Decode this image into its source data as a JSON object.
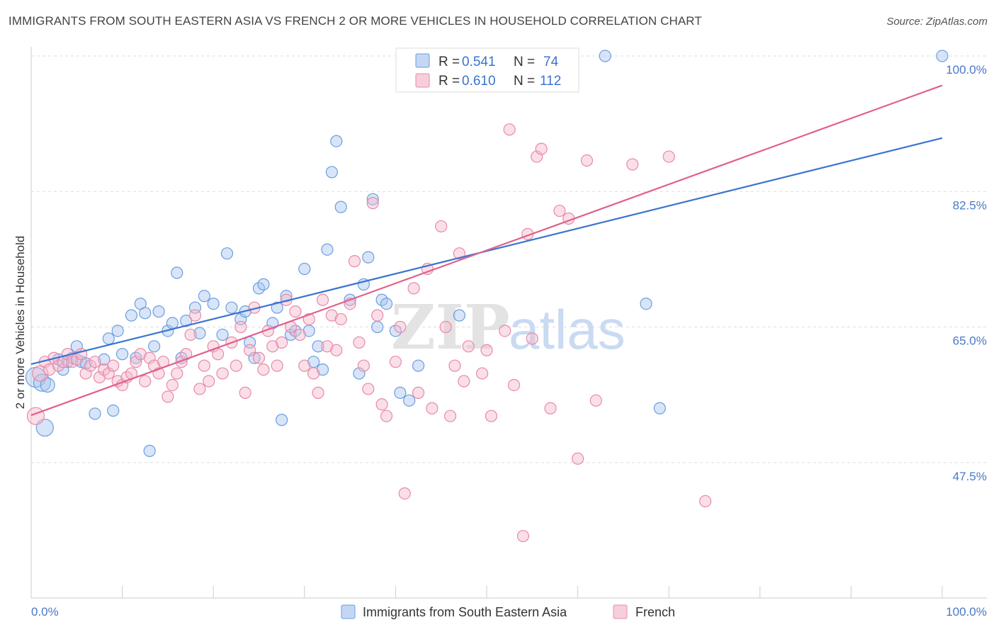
{
  "title": "IMMIGRANTS FROM SOUTH EASTERN ASIA VS FRENCH 2 OR MORE VEHICLES IN HOUSEHOLD CORRELATION CHART",
  "source": "Source: ZipAtlas.com",
  "watermark": {
    "zip": "ZIP",
    "atlas": "atlas"
  },
  "chart_data": {
    "type": "scatter",
    "ylabel": "2 or more Vehicles in Household",
    "xlim": [
      0,
      100
    ],
    "ylim": [
      30,
      100
    ],
    "x_tick_labels": [
      "0.0%",
      "100.0%"
    ],
    "y_ticks": [
      {
        "value": 100,
        "label": "100.0%"
      },
      {
        "value": 82.5,
        "label": "82.5%"
      },
      {
        "value": 65,
        "label": "65.0%"
      },
      {
        "value": 47.5,
        "label": "47.5%"
      }
    ],
    "grid": true,
    "legend_position": "top-center",
    "series": [
      {
        "name": "Immigrants from South Eastern Asia",
        "color": "#6c9ee0",
        "fill": "#a9c6ef",
        "line_color": "#3a74d0",
        "r": "0.541",
        "n": "74",
        "trend": [
          [
            0,
            60.2
          ],
          [
            100,
            89.4
          ]
        ],
        "points": [
          [
            0.5,
            58.5
          ],
          [
            1.2,
            57.8
          ],
          [
            1.5,
            52.0
          ],
          [
            1.8,
            57.5
          ],
          [
            3.0,
            60.8
          ],
          [
            3.5,
            59.5
          ],
          [
            4.0,
            60.5
          ],
          [
            4.5,
            61.0
          ],
          [
            5.0,
            62.5
          ],
          [
            5.5,
            60.5
          ],
          [
            6.0,
            60.3
          ],
          [
            7.0,
            53.8
          ],
          [
            8.0,
            60.8
          ],
          [
            8.5,
            63.5
          ],
          [
            9.0,
            54.2
          ],
          [
            9.5,
            64.5
          ],
          [
            10.0,
            61.5
          ],
          [
            11.0,
            66.5
          ],
          [
            11.5,
            61.0
          ],
          [
            12.0,
            68.0
          ],
          [
            12.5,
            66.8
          ],
          [
            13.0,
            49.0
          ],
          [
            13.5,
            62.5
          ],
          [
            14.0,
            67.0
          ],
          [
            15.0,
            64.5
          ],
          [
            15.5,
            65.5
          ],
          [
            16.0,
            72.0
          ],
          [
            16.5,
            61.0
          ],
          [
            17.0,
            65.8
          ],
          [
            18.0,
            67.5
          ],
          [
            18.5,
            64.2
          ],
          [
            19.0,
            69.0
          ],
          [
            20.0,
            68.0
          ],
          [
            21.0,
            64.0
          ],
          [
            21.5,
            74.5
          ],
          [
            22.0,
            67.5
          ],
          [
            23.0,
            66.0
          ],
          [
            23.5,
            67.0
          ],
          [
            24.0,
            63.0
          ],
          [
            24.5,
            61.0
          ],
          [
            25.0,
            70.0
          ],
          [
            25.5,
            70.5
          ],
          [
            26.5,
            65.5
          ],
          [
            27.0,
            67.5
          ],
          [
            27.5,
            53.0
          ],
          [
            28.0,
            69.0
          ],
          [
            28.5,
            64.0
          ],
          [
            29.0,
            64.5
          ],
          [
            30.0,
            72.5
          ],
          [
            30.5,
            64.5
          ],
          [
            31.0,
            60.5
          ],
          [
            31.5,
            62.5
          ],
          [
            32.0,
            59.5
          ],
          [
            32.5,
            75.0
          ],
          [
            33.0,
            85.0
          ],
          [
            33.5,
            89.0
          ],
          [
            34.0,
            80.5
          ],
          [
            35.0,
            68.5
          ],
          [
            36.0,
            59.0
          ],
          [
            36.5,
            70.5
          ],
          [
            37.0,
            74.0
          ],
          [
            37.5,
            81.5
          ],
          [
            38.0,
            65.0
          ],
          [
            38.5,
            68.5
          ],
          [
            39.0,
            68.0
          ],
          [
            40.0,
            64.5
          ],
          [
            40.5,
            56.5
          ],
          [
            41.5,
            55.5
          ],
          [
            42.5,
            60.0
          ],
          [
            47.0,
            66.5
          ],
          [
            63.0,
            100.0
          ],
          [
            67.5,
            68.0
          ],
          [
            69.0,
            54.5
          ],
          [
            100.0,
            100.0
          ]
        ]
      },
      {
        "name": "French",
        "color": "#e88aa8",
        "fill": "#f4b9cc",
        "line_color": "#e0608c",
        "r": "0.610",
        "n": "112",
        "trend": [
          [
            0,
            53.6
          ],
          [
            100,
            96.2
          ]
        ],
        "points": [
          [
            0.5,
            53.5
          ],
          [
            1.0,
            59.0
          ],
          [
            1.5,
            60.5
          ],
          [
            2.0,
            59.5
          ],
          [
            2.5,
            61.0
          ],
          [
            3.0,
            60.0
          ],
          [
            3.5,
            60.5
          ],
          [
            4.0,
            61.5
          ],
          [
            4.5,
            60.5
          ],
          [
            5.0,
            60.8
          ],
          [
            5.5,
            61.5
          ],
          [
            6.0,
            59.0
          ],
          [
            6.5,
            60.0
          ],
          [
            7.0,
            60.5
          ],
          [
            7.5,
            58.5
          ],
          [
            8.0,
            59.5
          ],
          [
            8.5,
            59.0
          ],
          [
            9.0,
            60.0
          ],
          [
            9.5,
            58.0
          ],
          [
            10.0,
            57.5
          ],
          [
            10.5,
            58.5
          ],
          [
            11.0,
            59.0
          ],
          [
            11.5,
            60.5
          ],
          [
            12.0,
            61.5
          ],
          [
            12.5,
            58.0
          ],
          [
            13.0,
            61.0
          ],
          [
            13.5,
            60.0
          ],
          [
            14.0,
            59.0
          ],
          [
            14.5,
            60.5
          ],
          [
            15.0,
            56.0
          ],
          [
            15.5,
            57.5
          ],
          [
            16.0,
            59.0
          ],
          [
            16.5,
            60.5
          ],
          [
            17.0,
            61.5
          ],
          [
            17.5,
            64.0
          ],
          [
            18.0,
            66.5
          ],
          [
            18.5,
            57.0
          ],
          [
            19.0,
            60.0
          ],
          [
            19.5,
            58.0
          ],
          [
            20.0,
            62.5
          ],
          [
            20.5,
            61.5
          ],
          [
            21.0,
            59.0
          ],
          [
            22.0,
            63.0
          ],
          [
            22.5,
            60.0
          ],
          [
            23.0,
            65.0
          ],
          [
            23.5,
            56.5
          ],
          [
            24.0,
            62.0
          ],
          [
            24.5,
            67.5
          ],
          [
            25.0,
            61.0
          ],
          [
            25.5,
            59.5
          ],
          [
            26.0,
            64.5
          ],
          [
            26.5,
            62.5
          ],
          [
            27.0,
            60.0
          ],
          [
            27.5,
            63.0
          ],
          [
            28.0,
            68.5
          ],
          [
            28.5,
            65.0
          ],
          [
            29.0,
            67.0
          ],
          [
            29.5,
            64.0
          ],
          [
            30.0,
            60.0
          ],
          [
            30.5,
            66.0
          ],
          [
            31.0,
            59.0
          ],
          [
            31.5,
            56.5
          ],
          [
            32.0,
            68.5
          ],
          [
            32.5,
            62.5
          ],
          [
            33.0,
            66.5
          ],
          [
            33.5,
            62.0
          ],
          [
            34.0,
            66.0
          ],
          [
            35.0,
            68.0
          ],
          [
            35.5,
            73.5
          ],
          [
            36.0,
            63.0
          ],
          [
            36.5,
            60.0
          ],
          [
            37.0,
            57.0
          ],
          [
            37.5,
            81.0
          ],
          [
            38.0,
            66.5
          ],
          [
            38.5,
            55.0
          ],
          [
            39.0,
            53.5
          ],
          [
            40.0,
            60.5
          ],
          [
            40.5,
            65.0
          ],
          [
            41.0,
            43.5
          ],
          [
            42.0,
            70.0
          ],
          [
            42.5,
            56.5
          ],
          [
            43.5,
            72.5
          ],
          [
            44.0,
            54.5
          ],
          [
            45.0,
            78.0
          ],
          [
            45.5,
            65.0
          ],
          [
            46.0,
            53.5
          ],
          [
            46.5,
            60.0
          ],
          [
            47.0,
            74.5
          ],
          [
            47.5,
            58.0
          ],
          [
            48.0,
            62.5
          ],
          [
            49.5,
            59.0
          ],
          [
            50.0,
            62.0
          ],
          [
            50.5,
            53.5
          ],
          [
            52.0,
            64.5
          ],
          [
            52.5,
            90.5
          ],
          [
            53.0,
            57.5
          ],
          [
            54.0,
            38.0
          ],
          [
            54.5,
            77.0
          ],
          [
            55.0,
            63.5
          ],
          [
            55.5,
            87.0
          ],
          [
            56.0,
            88.0
          ],
          [
            57.0,
            54.5
          ],
          [
            58.0,
            80.0
          ],
          [
            59.0,
            79.0
          ],
          [
            60.0,
            48.0
          ],
          [
            61.0,
            86.5
          ],
          [
            62.0,
            55.5
          ],
          [
            66.0,
            86.0
          ],
          [
            70.0,
            87.0
          ],
          [
            74.0,
            42.5
          ]
        ]
      }
    ]
  }
}
